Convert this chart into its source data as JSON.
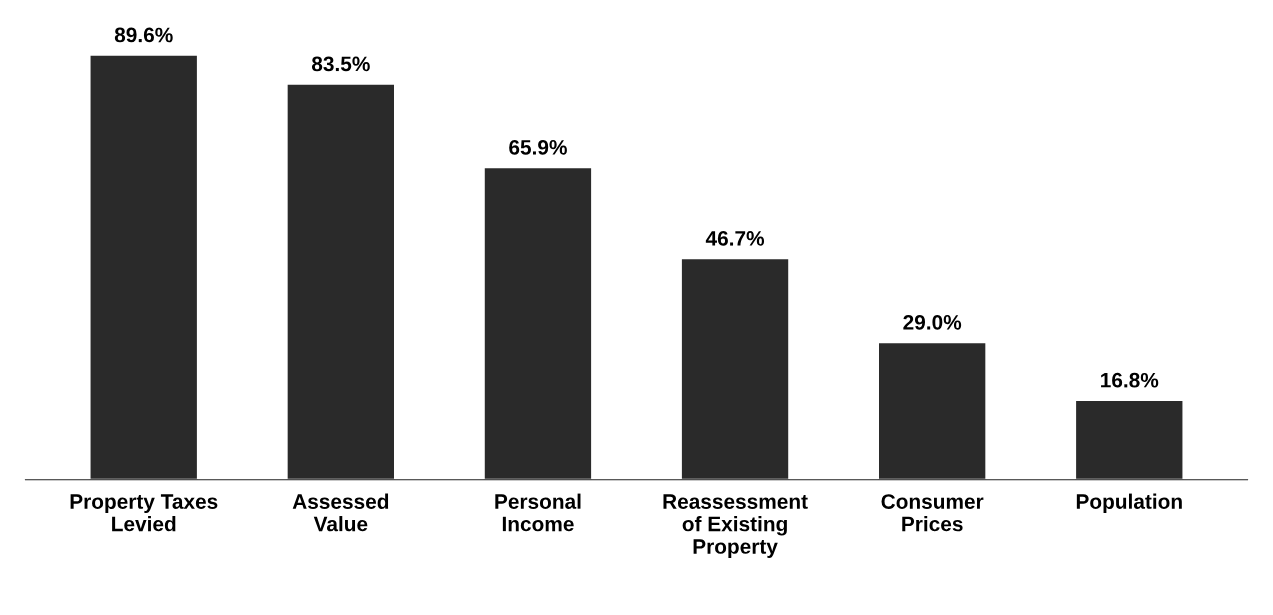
{
  "chart_data": {
    "type": "bar",
    "categories": [
      "Property Taxes\nLevied",
      "Assessed\nValue",
      "Personal\nIncome",
      "Reassessment\nof Existing\nProperty",
      "Consumer\nPrices",
      "Population"
    ],
    "values": [
      89.6,
      83.5,
      65.9,
      46.7,
      29.0,
      16.8
    ],
    "value_labels": [
      "89.6%",
      "83.5%",
      "65.9%",
      "46.7%",
      "29.0%",
      "16.8%"
    ],
    "color": "#2a2a2a",
    "grid": false,
    "legend": false
  }
}
